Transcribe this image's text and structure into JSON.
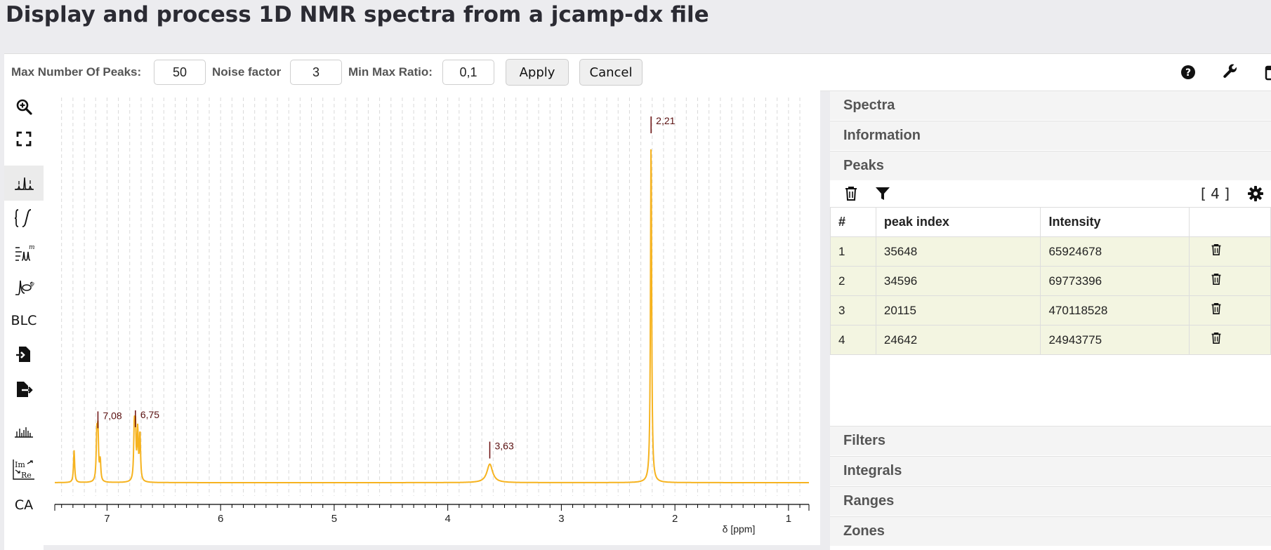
{
  "page": {
    "title": "Display and process 1D NMR spectra from a jcamp-dx file"
  },
  "toolbar": {
    "max_peaks_label": "Max Number Of Peaks:",
    "max_peaks_value": "50",
    "noise_label": "Noise factor",
    "noise_value": "3",
    "min_max_label": "Min Max Ratio:",
    "min_max_value": "0,1",
    "apply_label": "Apply",
    "cancel_label": "Cancel",
    "icons": [
      "help-circle-icon",
      "wrench-icon",
      "calendar-icon"
    ]
  },
  "tools": {
    "items": [
      "zoom-in-icon",
      "fullscreen-icon",
      "peak-picking-icon",
      "integral-icon",
      "multiplet-analysis-icon",
      "phase-correction-icon",
      "baseline-correction-text",
      "import-file-icon",
      "export-file-icon",
      "spectrum-stack-icon",
      "real-imaginary-icon",
      "ca-text"
    ],
    "blc_label": "BLC",
    "ca_label": "CA"
  },
  "chart_data": {
    "type": "line",
    "title": "",
    "xlabel": "δ [ppm]",
    "ylabel": "",
    "x_reversed": true,
    "xlim": [
      7.46,
      0.82
    ],
    "x_ticks": [
      7,
      6,
      5,
      4,
      3,
      2,
      1
    ],
    "x_tick_labels": [
      "7",
      "6",
      "5",
      "4",
      "3",
      "2",
      "1"
    ],
    "grid": "vertical dashed",
    "line_color": "#f6b31f",
    "peaks": [
      {
        "ppm": 7.29,
        "height": 0.094
      },
      {
        "ppm": 7.09,
        "height": 0.13
      },
      {
        "ppm": 7.08,
        "height": 0.142
      },
      {
        "ppm": 7.06,
        "height": 0.06
      },
      {
        "ppm": 6.76,
        "height": 0.148
      },
      {
        "ppm": 6.75,
        "height": 0.145
      },
      {
        "ppm": 6.73,
        "height": 0.143
      },
      {
        "ppm": 6.71,
        "height": 0.138
      },
      {
        "ppm": 3.63,
        "height": 0.054
      },
      {
        "ppm": 2.21,
        "height": 1.0
      }
    ],
    "peak_labels": [
      {
        "ppm": 7.08,
        "label": "7,08"
      },
      {
        "ppm": 6.75,
        "label": "6,75"
      },
      {
        "ppm": 3.63,
        "label": "3,63"
      },
      {
        "ppm": 2.21,
        "label": "2,21"
      }
    ]
  },
  "panel": {
    "sections_top": [
      "Spectra",
      "Information",
      "Peaks"
    ],
    "sections_bottom": [
      "Filters",
      "Integrals",
      "Ranges",
      "Zones"
    ],
    "peaks_count": "[ 4 ]",
    "peaks_columns": [
      "#",
      "peak index",
      "Intensity",
      ""
    ],
    "peaks_rows": [
      {
        "n": "1",
        "index": "35648",
        "intensity": "65924678"
      },
      {
        "n": "2",
        "index": "34596",
        "intensity": "69773396"
      },
      {
        "n": "3",
        "index": "20115",
        "intensity": "470118528"
      },
      {
        "n": "4",
        "index": "24642",
        "intensity": "24943775"
      }
    ]
  }
}
